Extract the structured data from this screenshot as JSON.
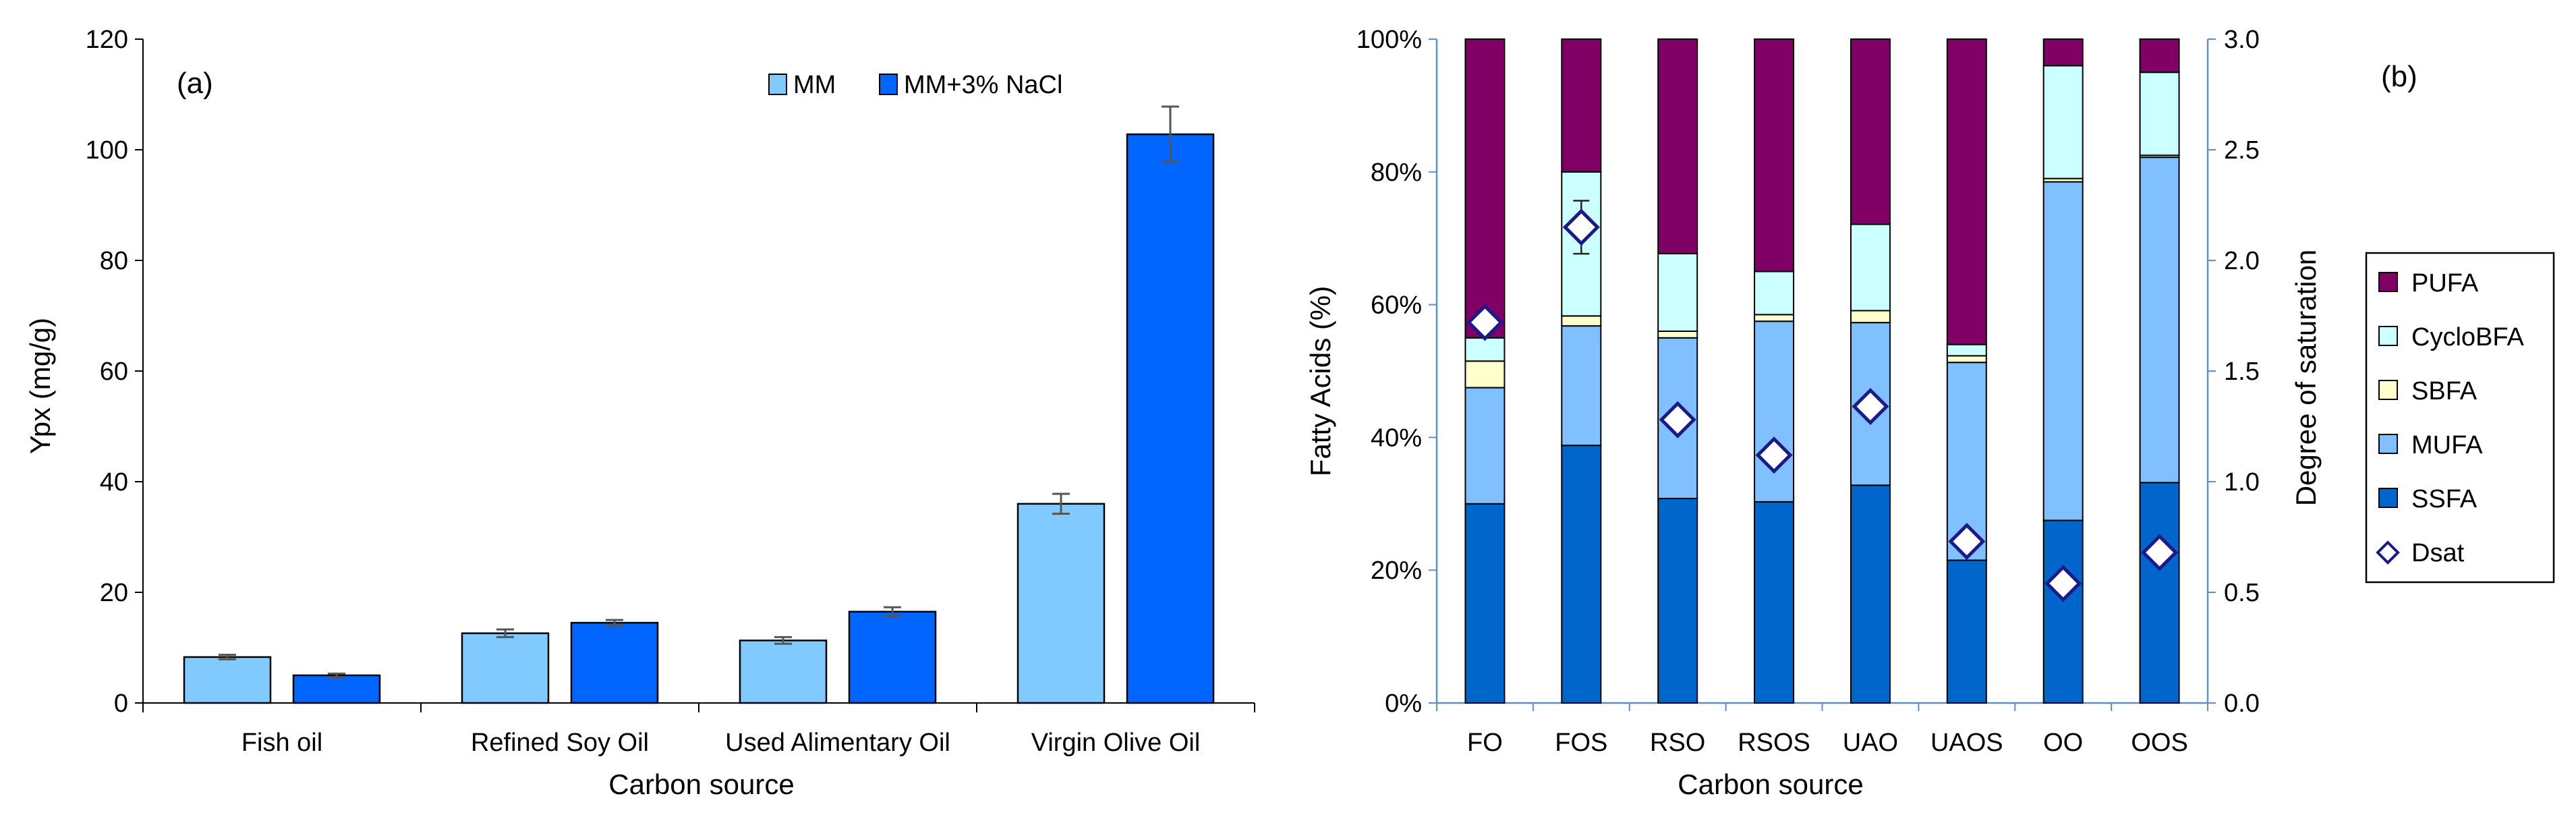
{
  "chart_data": [
    {
      "type": "bar",
      "panel_label": "(a)",
      "ylabel": "Ypx (mg/g)",
      "xlabel": "Carbon source",
      "ylim": [
        0,
        120
      ],
      "yticks": [
        0,
        20,
        40,
        60,
        80,
        100,
        120
      ],
      "categories": [
        "Fish oil",
        "Refined Soy Oil",
        "Used Alimentary Oil",
        "Virgin Olive Oil"
      ],
      "legend_position": "top-right",
      "series": [
        {
          "name": "MM",
          "color": "#80caff",
          "values": [
            8.3,
            12.6,
            11.3,
            36.0
          ],
          "errors": [
            0.4,
            0.7,
            0.6,
            1.8
          ]
        },
        {
          "name": "MM+3% NaCl",
          "color": "#0066ff",
          "values": [
            5.0,
            14.5,
            16.5,
            102.8
          ],
          "errors": [
            0.3,
            0.5,
            0.8,
            5.0
          ]
        }
      ]
    },
    {
      "type": "stacked-bar",
      "panel_label": "(b)",
      "ylabel": "Fatty Acids (%)",
      "y2label": "Degree of saturation",
      "xlabel": "Carbon source",
      "ylim": [
        0,
        100
      ],
      "yticks": [
        "0%",
        "20%",
        "40%",
        "60%",
        "80%",
        "100%"
      ],
      "y2lim": [
        0,
        3
      ],
      "y2ticks": [
        "0.0",
        "0.5",
        "1.0",
        "1.5",
        "2.0",
        "2.5",
        "3.0"
      ],
      "categories": [
        "FO",
        "FOS",
        "RSO",
        "RSOS",
        "UAO",
        "UAOS",
        "OO",
        "OOS"
      ],
      "legend_position": "right",
      "series": [
        {
          "name": "SSFA",
          "color": "#0066cc",
          "values": [
            30.0,
            38.8,
            30.8,
            30.3,
            32.8,
            21.5,
            27.5,
            33.2
          ]
        },
        {
          "name": "MUFA",
          "color": "#80c0ff",
          "values": [
            17.5,
            18.0,
            24.2,
            27.2,
            24.5,
            29.8,
            51.0,
            49.0
          ]
        },
        {
          "name": "SBFA",
          "color": "#ffffcc",
          "values": [
            4.0,
            1.5,
            1.0,
            1.0,
            1.8,
            1.0,
            0.5,
            0.3
          ]
        },
        {
          "name": "CycloBFA",
          "color": "#ccffff",
          "values": [
            3.5,
            21.7,
            11.7,
            6.5,
            13.0,
            1.7,
            17.0,
            12.5
          ]
        },
        {
          "name": "PUFA",
          "color": "#800066",
          "values": [
            45.0,
            20.0,
            32.3,
            35.0,
            27.9,
            46.0,
            4.0,
            5.0
          ]
        }
      ],
      "dsat": {
        "name": "Dsat",
        "values": [
          1.72,
          2.15,
          1.28,
          1.12,
          1.34,
          0.73,
          0.54,
          0.68
        ],
        "errors": [
          0.05,
          0.12,
          0,
          0,
          0,
          0,
          0,
          0
        ]
      },
      "legend_order": [
        "PUFA",
        "CycloBFA",
        "SBFA",
        "MUFA",
        "SSFA",
        "Dsat"
      ]
    }
  ]
}
